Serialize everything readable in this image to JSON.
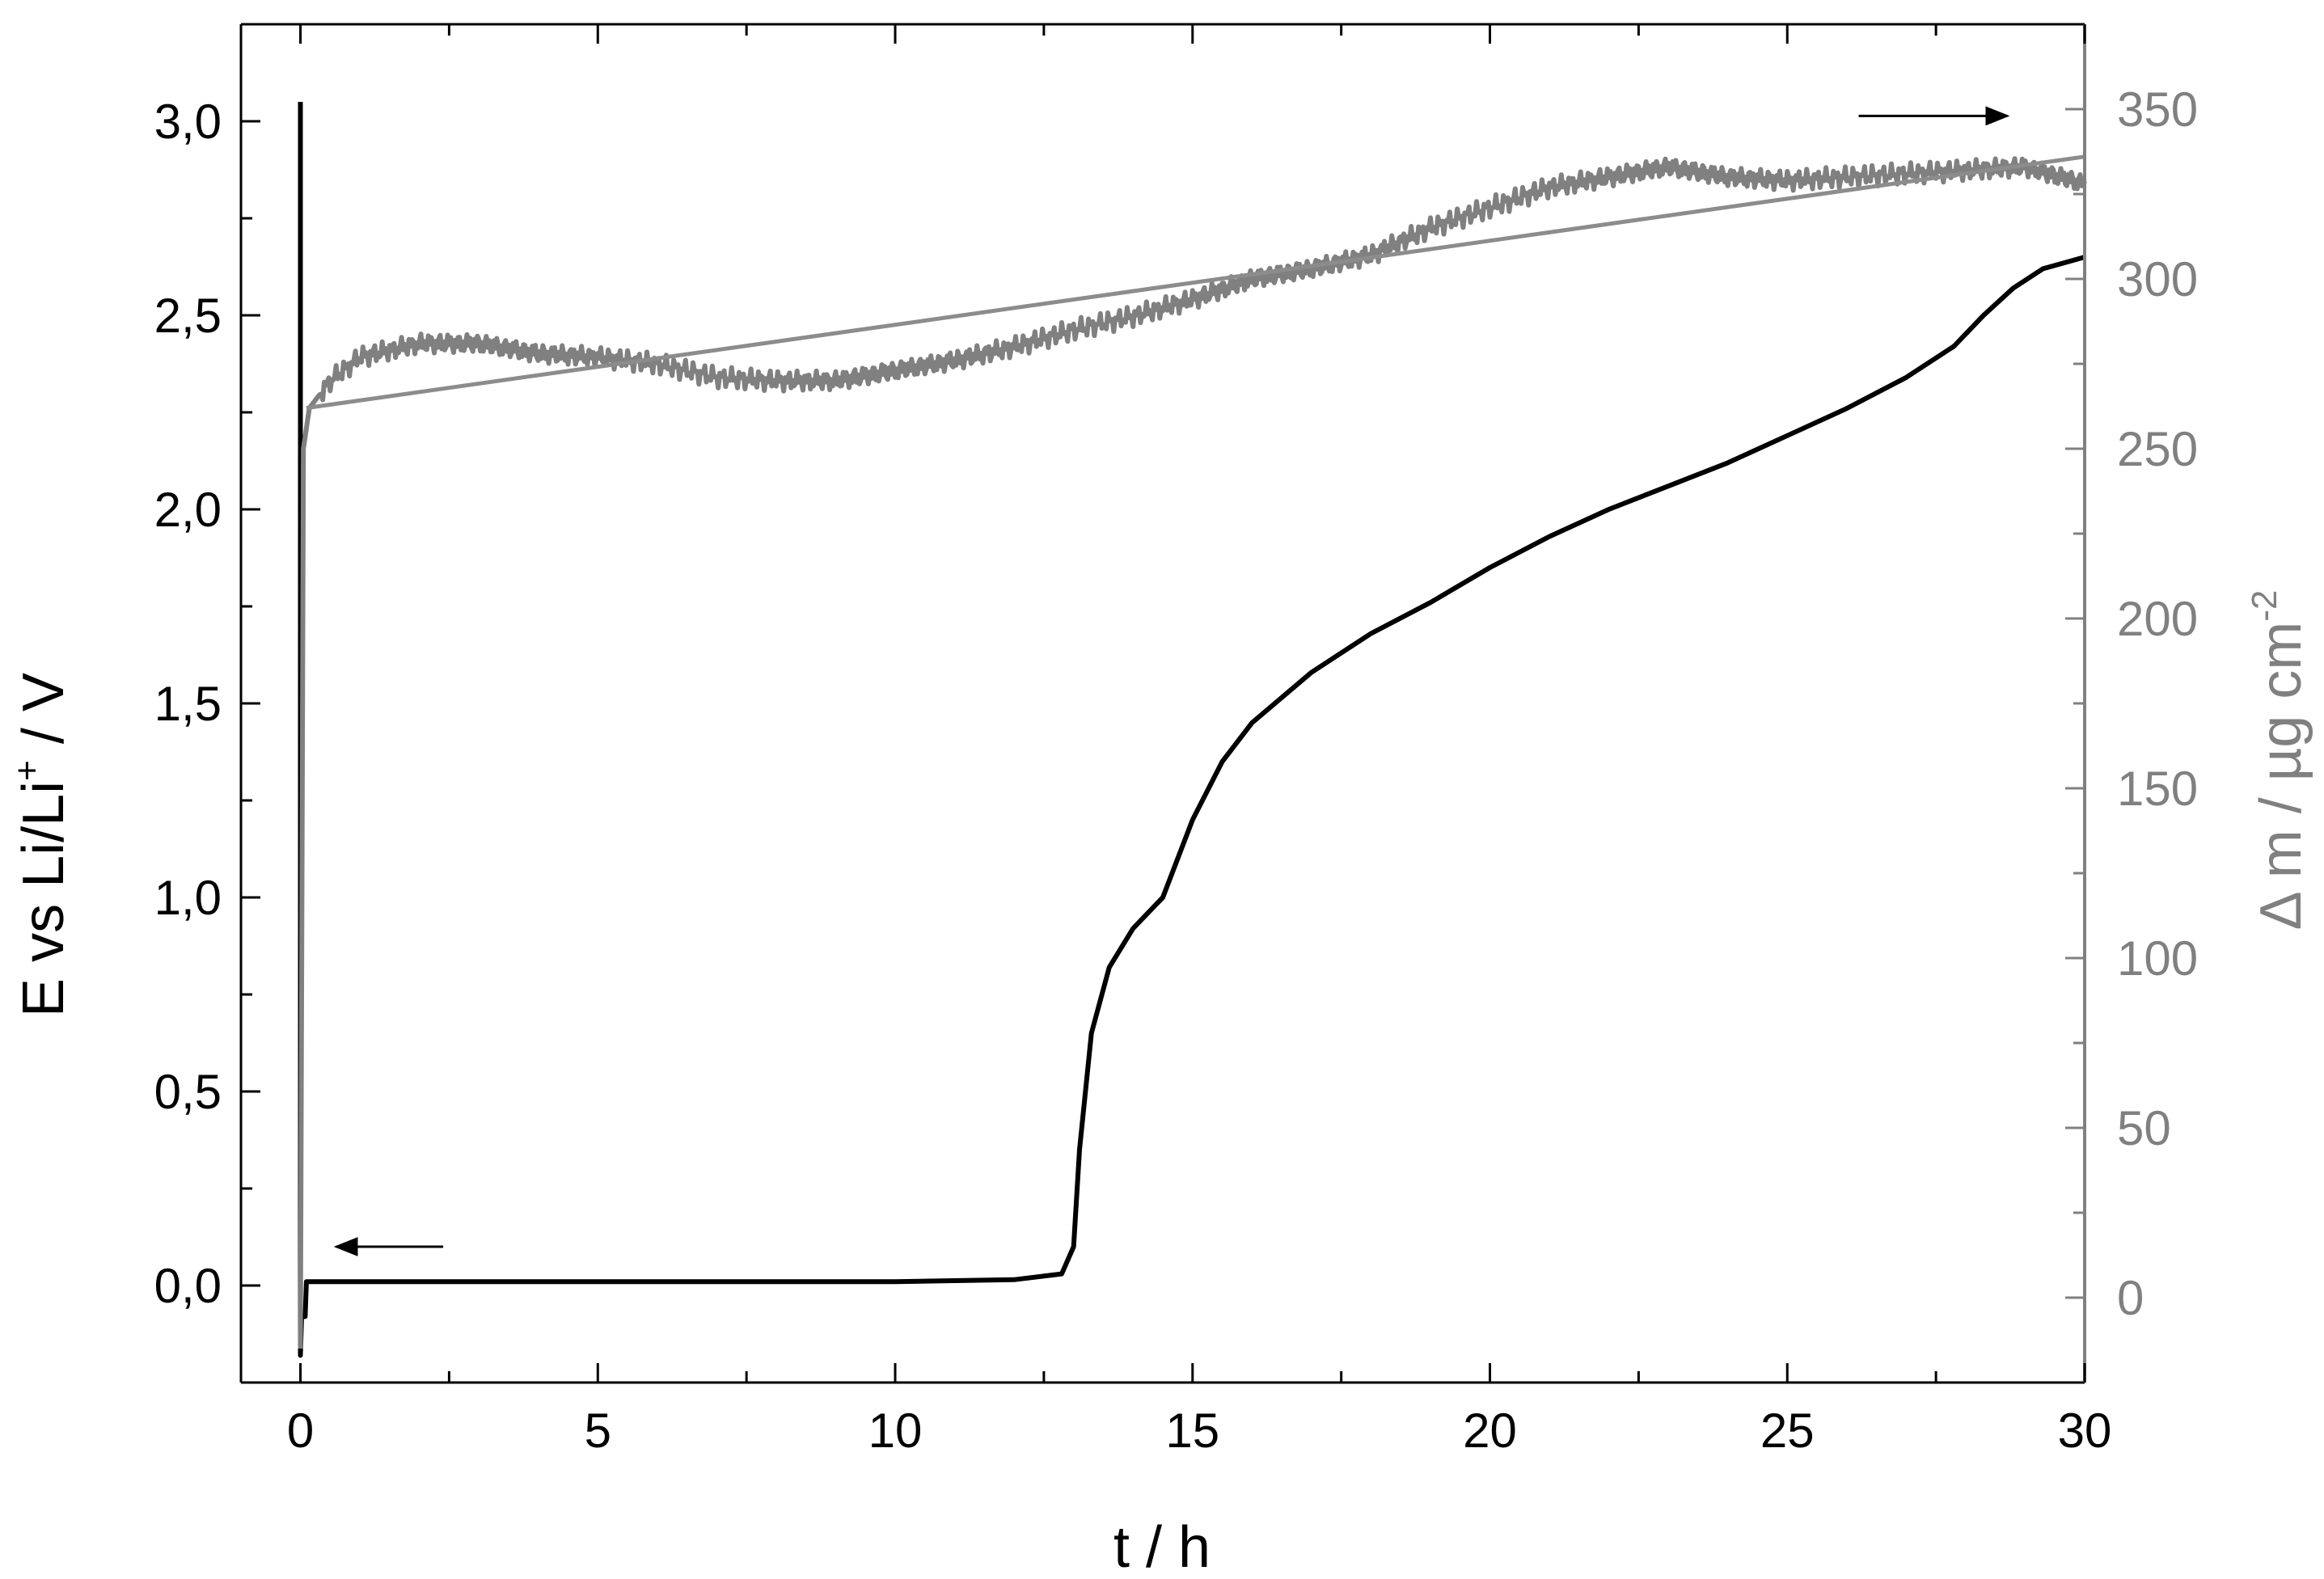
{
  "chart_data": {
    "type": "line",
    "xlabel": "t / h",
    "ylabel_left": {
      "main": "E vs Li/Li",
      "sup": "+",
      "tail": " / V"
    },
    "ylabel_right": {
      "main": "Δ m / µg cm",
      "sup": "-2"
    },
    "xlim": [
      -1,
      30
    ],
    "ylim_left": [
      -0.25,
      3.25
    ],
    "ylim_right": [
      -25,
      375
    ],
    "x_ticks": [
      "0",
      "5",
      "10",
      "15",
      "20",
      "25",
      "30"
    ],
    "x_tick_values": [
      0,
      5,
      10,
      15,
      20,
      25,
      30
    ],
    "y_left_ticks": [
      "0,0",
      "0,5",
      "1,0",
      "1,5",
      "2,0",
      "2,5",
      "3,0"
    ],
    "y_left_tick_values": [
      0,
      0.5,
      1.0,
      1.5,
      2.0,
      2.5,
      3.0
    ],
    "y_right_ticks": [
      "0",
      "50",
      "100",
      "150",
      "200",
      "250",
      "300",
      "350"
    ],
    "y_right_tick_values": [
      0,
      50,
      100,
      150,
      200,
      250,
      300,
      350
    ],
    "colors": {
      "potential": "#000000",
      "mass": "#808080",
      "fit": "#8c8c8c",
      "right_axis": "#808080"
    },
    "series": [
      {
        "axis": "left",
        "color": "#000000",
        "points": [
          [
            0,
            3.05
          ],
          [
            0,
            -0.18
          ],
          [
            0.02,
            -0.08
          ],
          [
            0.08,
            -0.08
          ],
          [
            0.1,
            0.01
          ],
          [
            1,
            0.01
          ],
          [
            5,
            0.01
          ],
          [
            10,
            0.01
          ],
          [
            12,
            0.015
          ],
          [
            12.8,
            0.03
          ],
          [
            13.0,
            0.1
          ],
          [
            13.1,
            0.35
          ],
          [
            13.3,
            0.65
          ],
          [
            13.6,
            0.82
          ],
          [
            14.0,
            0.92
          ],
          [
            14.5,
            1.0
          ],
          [
            15.0,
            1.2
          ],
          [
            15.5,
            1.35
          ],
          [
            16.0,
            1.45
          ],
          [
            17.0,
            1.58
          ],
          [
            18.0,
            1.68
          ],
          [
            19.0,
            1.76
          ],
          [
            20.0,
            1.85
          ],
          [
            21.0,
            1.93
          ],
          [
            22.0,
            2.0
          ],
          [
            23.0,
            2.06
          ],
          [
            24.0,
            2.12
          ],
          [
            25.0,
            2.19
          ],
          [
            26.0,
            2.26
          ],
          [
            27.0,
            2.34
          ],
          [
            27.8,
            2.42
          ],
          [
            28.3,
            2.5
          ],
          [
            28.8,
            2.57
          ],
          [
            29.3,
            2.62
          ],
          [
            30,
            2.65
          ]
        ]
      },
      {
        "axis": "right",
        "color": "#808080",
        "points": [
          [
            0,
            -15
          ],
          [
            0.05,
            250
          ],
          [
            0.15,
            262
          ],
          [
            0.5,
            270
          ],
          [
            1,
            277
          ],
          [
            2,
            281
          ],
          [
            3,
            281
          ],
          [
            4,
            278
          ],
          [
            5,
            277
          ],
          [
            6,
            275
          ],
          [
            7,
            271
          ],
          [
            8,
            270
          ],
          [
            9,
            270
          ],
          [
            10,
            273
          ],
          [
            11,
            276
          ],
          [
            12,
            280
          ],
          [
            13,
            285
          ],
          [
            14,
            289
          ],
          [
            15,
            294
          ],
          [
            16,
            300
          ],
          [
            17,
            303
          ],
          [
            18,
            307
          ],
          [
            19,
            315
          ],
          [
            20,
            321
          ],
          [
            21,
            327
          ],
          [
            22,
            330
          ],
          [
            23,
            333
          ],
          [
            24,
            330
          ],
          [
            25,
            329
          ],
          [
            26,
            330
          ],
          [
            27,
            331
          ],
          [
            28,
            332
          ],
          [
            29,
            333
          ],
          [
            30,
            328
          ]
        ]
      },
      {
        "axis": "right",
        "color": "#8c8c8c",
        "points": [
          [
            0.1,
            262
          ],
          [
            30,
            336
          ]
        ]
      }
    ],
    "annotations": [
      {
        "type": "arrow",
        "direction": "left",
        "axis": "left",
        "x_start": 2.4,
        "x_end": 0.6,
        "y": 0.1
      },
      {
        "type": "arrow",
        "direction": "right",
        "axis": "right",
        "x_start": 26.2,
        "x_end": 28.7,
        "y": 348
      }
    ]
  }
}
